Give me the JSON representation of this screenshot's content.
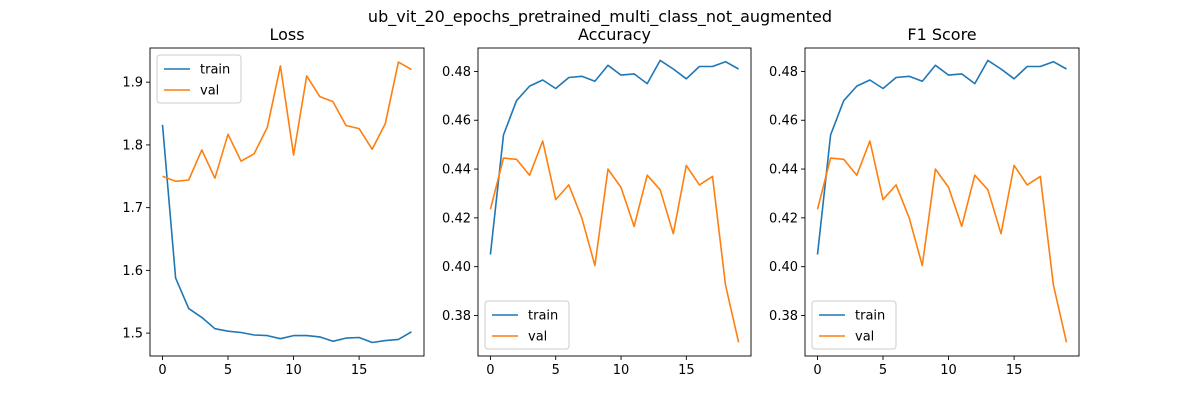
{
  "figure": {
    "suptitle": "ub_vit_20_epochs_pretrained_multi_class_not_augmented"
  },
  "colors": {
    "train": "#1f77b4",
    "val": "#ff7f0e"
  },
  "chart_data": [
    {
      "type": "line",
      "title": "Loss",
      "xlabel": "",
      "ylabel": "",
      "x": [
        0,
        1,
        2,
        3,
        4,
        5,
        6,
        7,
        8,
        9,
        10,
        11,
        12,
        13,
        14,
        15,
        16,
        17,
        18,
        19
      ],
      "xlim": [
        -0.95,
        19.95
      ],
      "ylim": [
        1.4635,
        1.9545
      ],
      "xticks": [
        0,
        5,
        10,
        15
      ],
      "yticks": [
        1.5,
        1.6,
        1.7,
        1.8,
        1.9
      ],
      "ytick_labels": [
        "1.5",
        "1.6",
        "1.7",
        "1.8",
        "1.9"
      ],
      "legend_loc": "top-left",
      "grid": false,
      "series": [
        {
          "name": "train",
          "values": [
            1.832,
            1.588,
            1.539,
            1.525,
            1.507,
            1.503,
            1.501,
            1.497,
            1.496,
            1.491,
            1.496,
            1.496,
            1.494,
            1.487,
            1.492,
            1.493,
            1.485,
            1.488,
            1.49,
            1.502
          ]
        },
        {
          "name": "val",
          "values": [
            1.75,
            1.742,
            1.744,
            1.792,
            1.747,
            1.817,
            1.774,
            1.786,
            1.828,
            1.926,
            1.784,
            1.91,
            1.877,
            1.869,
            1.831,
            1.826,
            1.793,
            1.834,
            1.932,
            1.92
          ]
        }
      ]
    },
    {
      "type": "line",
      "title": "Accuracy",
      "xlabel": "",
      "ylabel": "",
      "x": [
        0,
        1,
        2,
        3,
        4,
        5,
        6,
        7,
        8,
        9,
        10,
        11,
        12,
        13,
        14,
        15,
        16,
        17,
        18,
        19
      ],
      "xlim": [
        -0.95,
        19.95
      ],
      "ylim": [
        0.3634,
        0.4896
      ],
      "xticks": [
        0,
        5,
        10,
        15
      ],
      "yticks": [
        0.38,
        0.4,
        0.42,
        0.44,
        0.46,
        0.48
      ],
      "ytick_labels": [
        "0.38",
        "0.40",
        "0.42",
        "0.44",
        "0.46",
        "0.48"
      ],
      "legend_loc": "bottom-left",
      "grid": false,
      "series": [
        {
          "name": "train",
          "values": [
            0.405,
            0.454,
            0.468,
            0.474,
            0.4765,
            0.473,
            0.4775,
            0.478,
            0.476,
            0.4825,
            0.4785,
            0.479,
            0.475,
            0.4845,
            0.481,
            0.477,
            0.482,
            0.482,
            0.484,
            0.481
          ]
        },
        {
          "name": "val",
          "values": [
            0.4235,
            0.4445,
            0.444,
            0.4375,
            0.4515,
            0.4275,
            0.4335,
            0.42,
            0.4005,
            0.44,
            0.4325,
            0.4165,
            0.4375,
            0.4315,
            0.4135,
            0.4415,
            0.4335,
            0.437,
            0.3925,
            0.369
          ]
        }
      ]
    },
    {
      "type": "line",
      "title": "F1 Score",
      "xlabel": "",
      "ylabel": "",
      "x": [
        0,
        1,
        2,
        3,
        4,
        5,
        6,
        7,
        8,
        9,
        10,
        11,
        12,
        13,
        14,
        15,
        16,
        17,
        18,
        19
      ],
      "xlim": [
        -0.95,
        19.95
      ],
      "ylim": [
        0.3634,
        0.4896
      ],
      "xticks": [
        0,
        5,
        10,
        15
      ],
      "yticks": [
        0.38,
        0.4,
        0.42,
        0.44,
        0.46,
        0.48
      ],
      "ytick_labels": [
        "0.38",
        "0.40",
        "0.42",
        "0.44",
        "0.46",
        "0.48"
      ],
      "legend_loc": "bottom-left",
      "grid": false,
      "series": [
        {
          "name": "train",
          "values": [
            0.405,
            0.454,
            0.468,
            0.474,
            0.4765,
            0.473,
            0.4775,
            0.478,
            0.476,
            0.4825,
            0.4785,
            0.479,
            0.475,
            0.4845,
            0.481,
            0.477,
            0.482,
            0.482,
            0.484,
            0.481
          ]
        },
        {
          "name": "val",
          "values": [
            0.4235,
            0.4445,
            0.444,
            0.4375,
            0.4515,
            0.4275,
            0.4335,
            0.42,
            0.4005,
            0.44,
            0.4325,
            0.4165,
            0.4375,
            0.4315,
            0.4135,
            0.4415,
            0.4335,
            0.437,
            0.3925,
            0.369
          ]
        }
      ]
    }
  ]
}
